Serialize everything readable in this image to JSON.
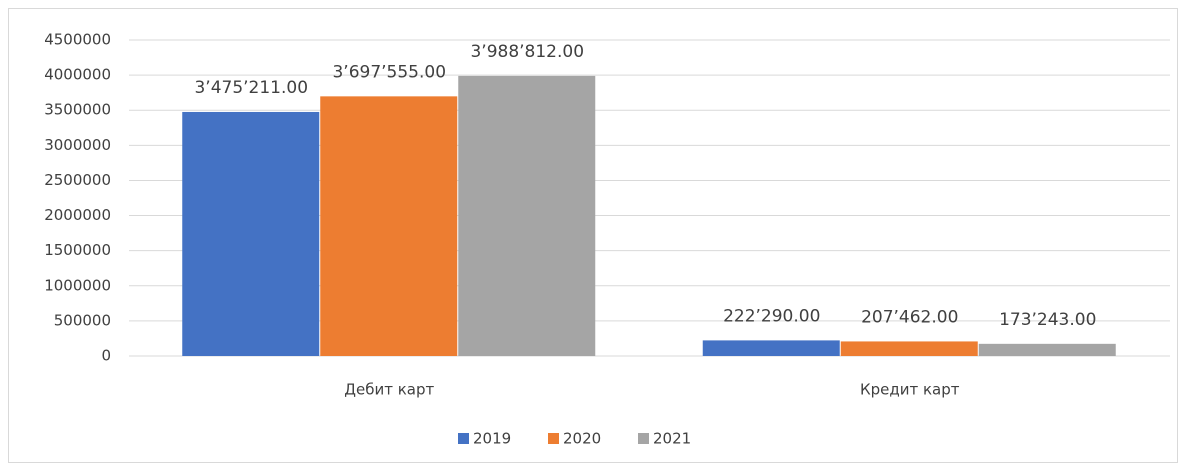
{
  "chart_data": {
    "type": "bar",
    "categories": [
      "Дебит карт",
      "Кредит карт"
    ],
    "series": [
      {
        "name": "2019",
        "color": "#4472c4",
        "values": [
          3475211,
          222290
        ],
        "value_labels": [
          "3’475’211.00",
          "222’290.00"
        ]
      },
      {
        "name": "2020",
        "color": "#ed7d31",
        "values": [
          3697555,
          207462
        ],
        "value_labels": [
          "3’697’555.00",
          "207’462.00"
        ]
      },
      {
        "name": "2021",
        "color": "#a5a5a5",
        "values": [
          3988812,
          173243
        ],
        "value_labels": [
          "3’988’812.00",
          "173’243.00"
        ]
      }
    ],
    "ylim": [
      0,
      4500000
    ],
    "yticks": [
      0,
      500000,
      1000000,
      1500000,
      2000000,
      2500000,
      3000000,
      3500000,
      4000000,
      4500000
    ],
    "grid": true,
    "legend": "bottom"
  }
}
